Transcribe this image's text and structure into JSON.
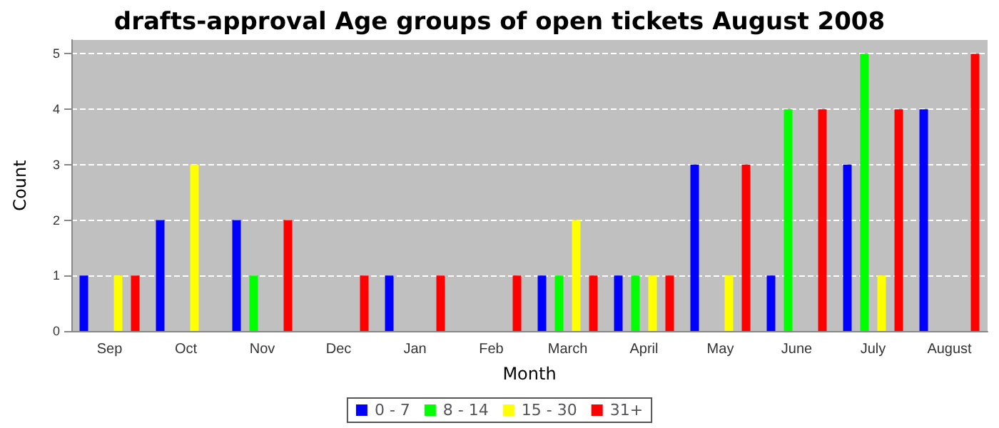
{
  "chart_data": {
    "type": "bar",
    "title": "drafts-approval Age groups of open tickets August 2008",
    "xlabel": "Month",
    "ylabel": "Count",
    "categories": [
      "Sep",
      "Oct",
      "Nov",
      "Dec",
      "Jan",
      "Feb",
      "March",
      "April",
      "May",
      "June",
      "July",
      "August"
    ],
    "series": [
      {
        "name": "0 - 7",
        "color": "#0000ff",
        "values": [
          1,
          2,
          2,
          0,
          1,
          0,
          1,
          1,
          3,
          1,
          3,
          4
        ]
      },
      {
        "name": "8 - 14",
        "color": "#00ff00",
        "values": [
          0,
          0,
          1,
          0,
          0,
          0,
          1,
          1,
          0,
          4,
          5,
          0
        ]
      },
      {
        "name": "15 - 30",
        "color": "#ffff00",
        "values": [
          1,
          3,
          0,
          0,
          0,
          0,
          2,
          1,
          1,
          0,
          1,
          0
        ]
      },
      {
        "name": "31+",
        "color": "#ff0000",
        "values": [
          1,
          0,
          2,
          1,
          1,
          1,
          1,
          1,
          3,
          4,
          4,
          5
        ]
      }
    ],
    "ylim": [
      0,
      5.25
    ],
    "yticks": [
      0,
      1,
      2,
      3,
      4,
      5
    ],
    "grid": "y",
    "legend": "bottom"
  }
}
